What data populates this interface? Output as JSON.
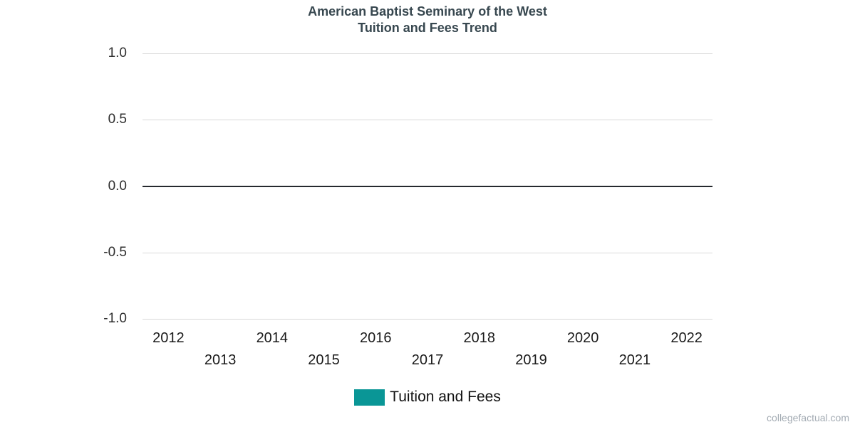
{
  "page": {
    "background_color": "#ffffff"
  },
  "header": {
    "title_line1": "American Baptist Seminary of the West",
    "title_line2": "Tuition and Fees Trend",
    "title_color": "#37474f"
  },
  "legend": {
    "label": "Tuition and Fees",
    "swatch_color": "#0a9696"
  },
  "footer": {
    "credit": "collegefactual.com"
  },
  "chart_data": {
    "type": "line",
    "title": "American Baptist Seminary of the West Tuition and Fees Trend",
    "xlabel": "",
    "ylabel": "",
    "x_ticks": [
      "2012",
      "2013",
      "2014",
      "2015",
      "2016",
      "2017",
      "2018",
      "2019",
      "2020",
      "2021",
      "2022"
    ],
    "y_ticks": [
      "1.0",
      "0.5",
      "0.0",
      "-0.5",
      "-1.0"
    ],
    "ylim": [
      -1.0,
      1.0
    ],
    "grid": "horizontal",
    "gridline_color": "#d9d9d9",
    "zero_line_color": "#26292e",
    "legend_position": "bottom-center",
    "x_label_layout": "staggered-two-rows",
    "series": [
      {
        "name": "Tuition and Fees",
        "color": "#0a9696",
        "x": [],
        "values": []
      }
    ]
  }
}
